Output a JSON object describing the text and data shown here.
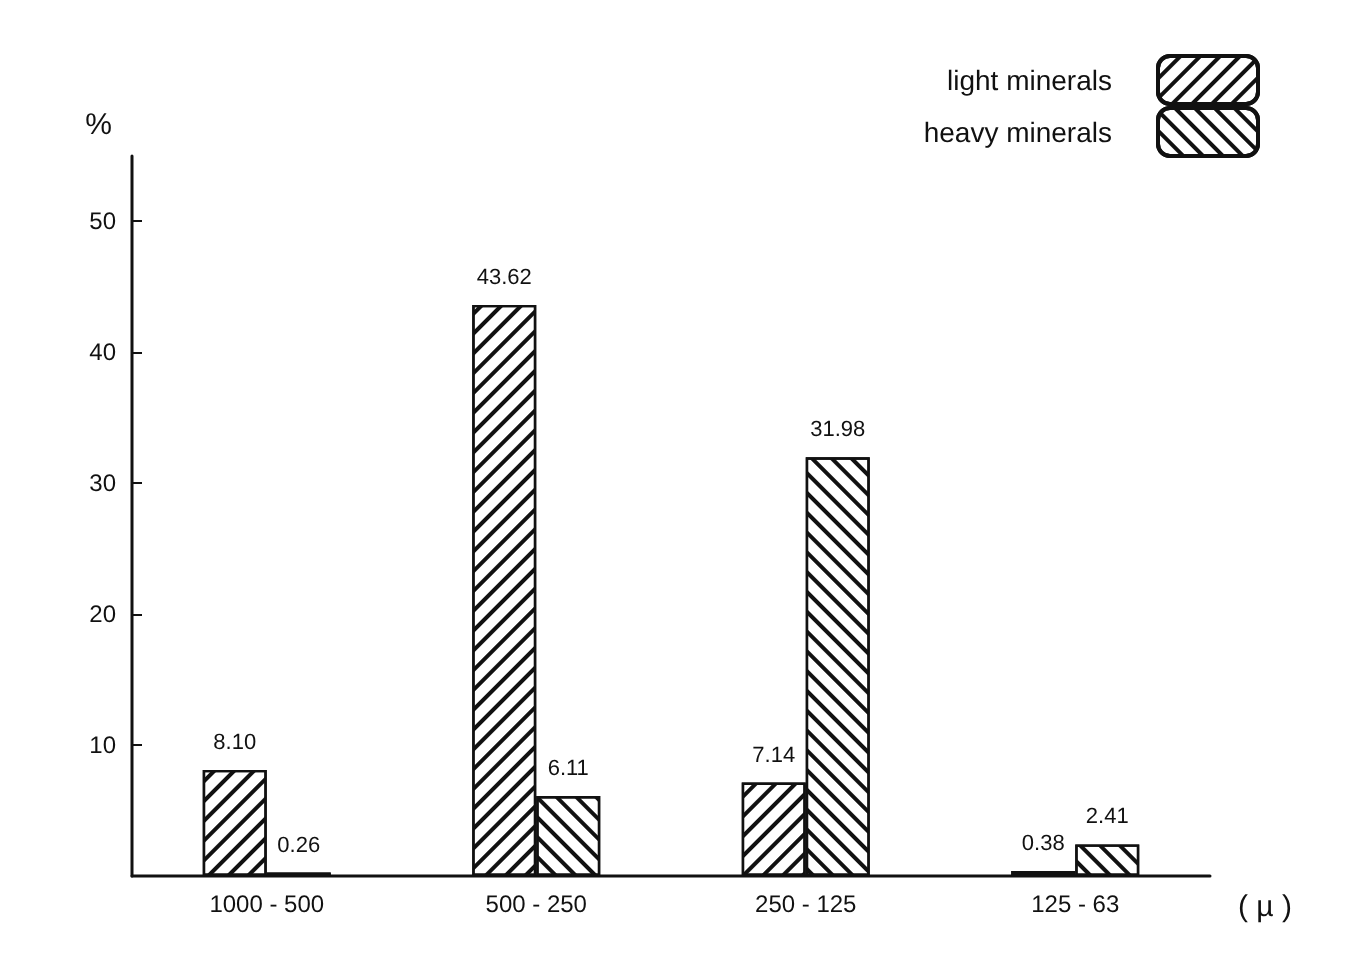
{
  "chart_data": {
    "type": "bar",
    "ylabel": "%",
    "xlabel": "( µ )",
    "categories": [
      "1000 - 500",
      "500 - 250",
      "250 - 125",
      "125 - 63"
    ],
    "series": [
      {
        "name": "light minerals",
        "color": "#ffffff",
        "values": [
          8.1,
          43.62,
          7.14,
          0.38
        ],
        "value_labels": [
          "8.10",
          "43.62",
          "7.14",
          "0.38"
        ]
      },
      {
        "name": "heavy minerals",
        "color": "#ffffff",
        "values": [
          0.26,
          6.11,
          31.98,
          2.41
        ],
        "value_labels": [
          "0.26",
          "6.11",
          "31.98",
          "2.41"
        ]
      }
    ],
    "ylim": [
      0,
      55
    ],
    "yticks": [
      10,
      20,
      30,
      40,
      50
    ],
    "legend": "top right",
    "grid": false
  }
}
